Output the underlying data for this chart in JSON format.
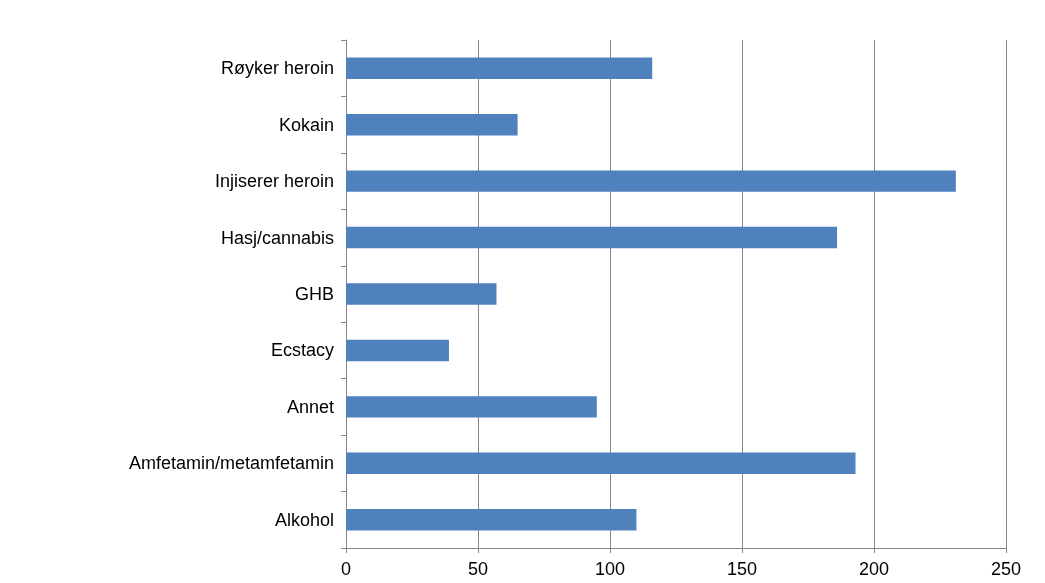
{
  "chart_data": {
    "type": "bar",
    "orientation": "horizontal",
    "categories": [
      "Røyker heroin",
      "Kokain",
      "Injiserer heroin",
      "Hasj/cannabis",
      "GHB",
      "Ecstacy",
      "Annet",
      "Amfetamin/metamfetamin",
      "Alkohol"
    ],
    "values": [
      116,
      65,
      231,
      186,
      57,
      39,
      95,
      193,
      110
    ],
    "color": "#4f81bd",
    "xlim": [
      0,
      250
    ],
    "xticks": [
      0,
      50,
      100,
      150,
      200,
      250
    ],
    "grid": "x"
  }
}
